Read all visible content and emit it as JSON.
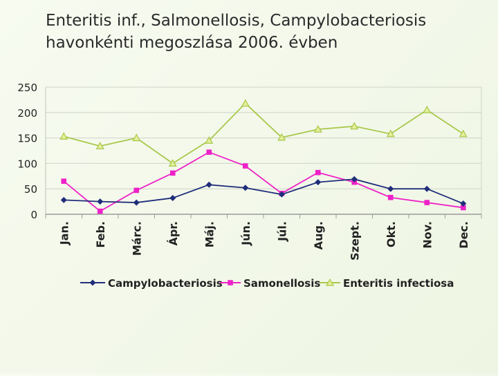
{
  "slide": {
    "title_line1": "Enteritis inf., Salmonellosis, Campylobacteriosis",
    "title_line2": "havonkénti megoszlása 2006. évben"
  },
  "chart_data": {
    "type": "line",
    "title": "Enteritis inf., Salmonellosis, Campylobacteriosis havonkénti megoszlása 2006. évben",
    "xlabel": "",
    "ylabel": "",
    "ylim": [
      0,
      250
    ],
    "yticks": [
      0,
      50,
      100,
      150,
      200,
      250
    ],
    "grid": true,
    "legend": "bottom",
    "categories": [
      "Jan.",
      "Feb.",
      "Márc.",
      "Ápr.",
      "Máj.",
      "Jún.",
      "Júl.",
      "Aug.",
      "Szept.",
      "Okt.",
      "Nov.",
      "Dec."
    ],
    "series": [
      {
        "name": "Campylobacteriosis",
        "color": "#1f2d7a",
        "marker": "diamond",
        "values": [
          28,
          25,
          23,
          32,
          58,
          52,
          39,
          63,
          69,
          50,
          50,
          21
        ]
      },
      {
        "name": "Samonellosis",
        "color": "#ee22c8",
        "marker": "square",
        "values": [
          65,
          6,
          47,
          81,
          122,
          95,
          41,
          82,
          63,
          33,
          23,
          13
        ]
      },
      {
        "name": "Enteritis infectiosa",
        "color": "#a8c84a",
        "marker": "triangle",
        "values": [
          153,
          134,
          150,
          100,
          145,
          218,
          151,
          167,
          173,
          158,
          205,
          158
        ]
      }
    ]
  }
}
